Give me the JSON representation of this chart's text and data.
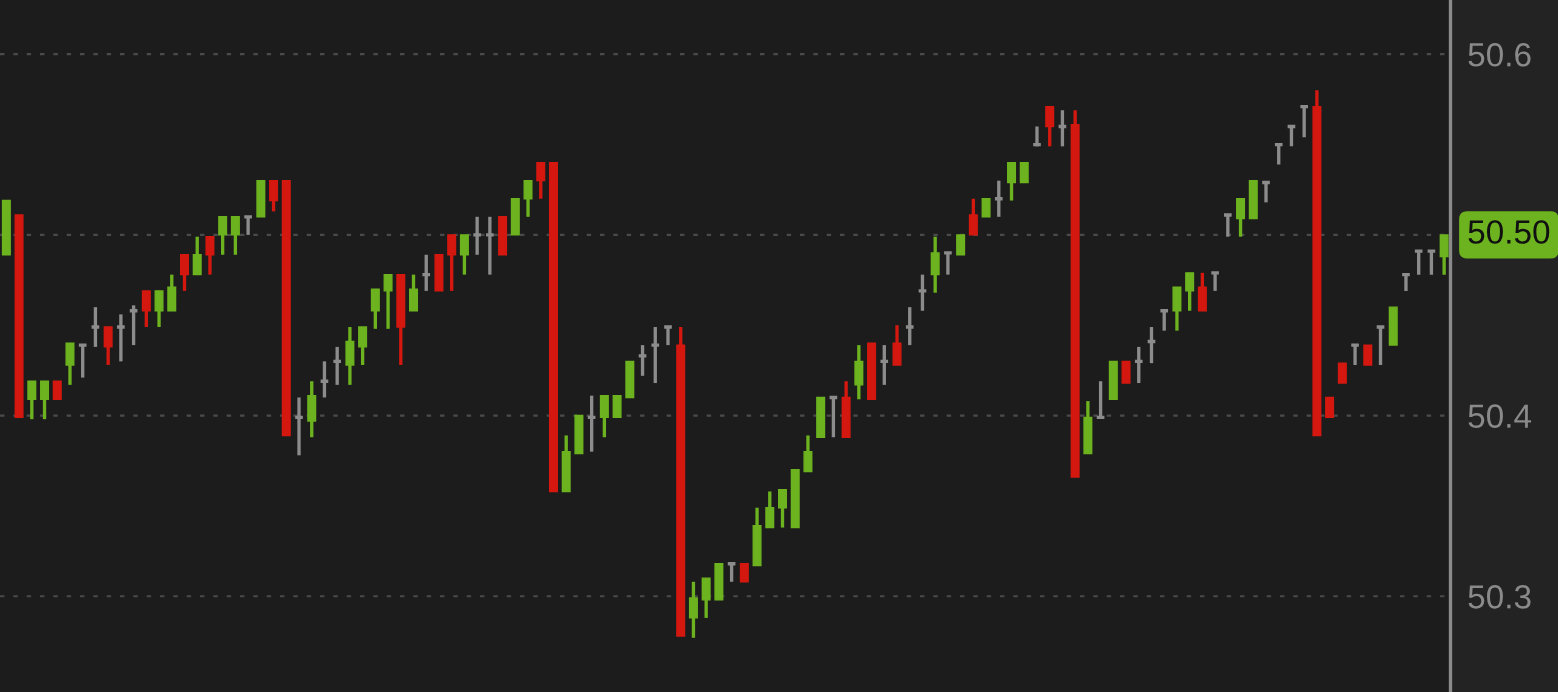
{
  "chart_data": {
    "type": "candlestick",
    "categories": [
      null,
      null,
      null,
      null,
      null,
      null,
      null,
      null,
      null,
      null,
      null,
      null,
      null,
      null,
      null,
      null,
      null,
      null,
      null,
      null,
      null,
      null,
      null,
      null,
      null,
      null,
      null,
      null,
      null,
      null,
      null,
      null,
      null,
      null,
      null,
      null,
      null,
      null,
      null,
      null,
      null,
      null,
      null,
      null,
      null,
      null,
      null,
      null,
      null,
      null,
      null,
      null,
      null,
      null,
      null,
      null,
      null,
      null,
      null,
      null,
      null,
      null,
      null,
      null,
      null,
      null,
      null,
      null,
      null,
      null,
      null,
      null,
      null,
      null,
      null,
      null,
      null,
      null,
      null,
      null,
      null,
      null,
      null,
      null,
      null,
      null,
      null,
      null,
      null,
      null,
      null,
      null,
      null,
      null,
      null,
      null,
      null,
      null,
      null,
      null,
      null,
      null,
      null,
      null,
      null,
      null,
      null,
      null,
      null,
      null,
      null,
      null,
      null,
      null
    ],
    "ohlc": [
      [
        50.489,
        50.519,
        50.489,
        50.519
      ],
      [
        50.511,
        50.511,
        50.399,
        50.399
      ],
      [
        50.409,
        50.419,
        50.398,
        50.419
      ],
      [
        50.409,
        50.419,
        50.398,
        50.419
      ],
      [
        50.419,
        50.419,
        50.409,
        50.409
      ],
      [
        50.428,
        50.44,
        50.417,
        50.44
      ],
      [
        50.439,
        50.439,
        50.421,
        50.439
      ],
      [
        50.449,
        50.46,
        50.438,
        50.449
      ],
      [
        50.449,
        50.449,
        50.428,
        50.438
      ],
      [
        50.449,
        50.456,
        50.43,
        50.449
      ],
      [
        50.458,
        50.461,
        50.439,
        50.458
      ],
      [
        50.469,
        50.469,
        50.449,
        50.458
      ],
      [
        50.458,
        50.469,
        50.449,
        50.469
      ],
      [
        50.458,
        50.478,
        50.458,
        50.471
      ],
      [
        50.489,
        50.489,
        50.469,
        50.478
      ],
      [
        50.478,
        50.499,
        50.478,
        50.489
      ],
      [
        50.499,
        50.499,
        50.478,
        50.489
      ],
      [
        50.5,
        50.51,
        50.489,
        50.51
      ],
      [
        50.5,
        50.51,
        50.489,
        50.51
      ],
      [
        50.51,
        50.51,
        50.5,
        50.51
      ],
      [
        50.51,
        50.53,
        50.51,
        50.53
      ],
      [
        50.53,
        50.53,
        50.513,
        50.519
      ],
      [
        50.53,
        50.53,
        50.389,
        50.389
      ],
      [
        50.399,
        50.41,
        50.378,
        50.399
      ],
      [
        50.397,
        50.419,
        50.388,
        50.411
      ],
      [
        50.419,
        50.43,
        50.41,
        50.419
      ],
      [
        50.43,
        50.438,
        50.417,
        50.43
      ],
      [
        50.428,
        50.449,
        50.417,
        50.441
      ],
      [
        50.438,
        50.449,
        50.428,
        50.449
      ],
      [
        50.458,
        50.47,
        50.448,
        50.47
      ],
      [
        50.469,
        50.478,
        50.448,
        50.478
      ],
      [
        50.478,
        50.478,
        50.428,
        50.449
      ],
      [
        50.458,
        50.478,
        50.458,
        50.47
      ],
      [
        50.478,
        50.489,
        50.469,
        50.478
      ],
      [
        50.489,
        50.489,
        50.469,
        50.469
      ],
      [
        50.5,
        50.5,
        50.469,
        50.489
      ],
      [
        50.489,
        50.5,
        50.478,
        50.5
      ],
      [
        50.5,
        50.51,
        50.489,
        50.5
      ],
      [
        50.5,
        50.51,
        50.478,
        50.5
      ],
      [
        50.51,
        50.51,
        50.489,
        50.489
      ],
      [
        50.5,
        50.52,
        50.5,
        50.52
      ],
      [
        50.52,
        50.53,
        50.51,
        50.53
      ],
      [
        50.54,
        50.54,
        50.52,
        50.53
      ],
      [
        50.54,
        50.54,
        50.358,
        50.358
      ],
      [
        50.358,
        50.389,
        50.358,
        50.38
      ],
      [
        50.379,
        50.4,
        50.379,
        50.4
      ],
      [
        50.399,
        50.411,
        50.38,
        50.399
      ],
      [
        50.399,
        50.411,
        50.388,
        50.411
      ],
      [
        50.399,
        50.411,
        50.399,
        50.411
      ],
      [
        50.41,
        50.43,
        50.41,
        50.43
      ],
      [
        50.433,
        50.439,
        50.422,
        50.433
      ],
      [
        50.439,
        50.449,
        50.418,
        50.439
      ],
      [
        50.449,
        50.449,
        50.439,
        50.449
      ],
      [
        50.439,
        50.449,
        50.278,
        50.278
      ],
      [
        50.288,
        50.308,
        50.277,
        50.299
      ],
      [
        50.298,
        50.31,
        50.288,
        50.31
      ],
      [
        50.298,
        50.318,
        50.298,
        50.318
      ],
      [
        50.318,
        50.318,
        50.308,
        50.318
      ],
      [
        50.318,
        50.318,
        50.308,
        50.308
      ],
      [
        50.317,
        50.349,
        50.317,
        50.339
      ],
      [
        50.338,
        50.358,
        50.338,
        50.349
      ],
      [
        50.349,
        50.359,
        50.338,
        50.359
      ],
      [
        50.338,
        50.37,
        50.338,
        50.37
      ],
      [
        50.369,
        50.389,
        50.369,
        50.38
      ],
      [
        50.388,
        50.41,
        50.388,
        50.41
      ],
      [
        50.41,
        50.41,
        50.388,
        50.41
      ],
      [
        50.41,
        50.419,
        50.388,
        50.388
      ],
      [
        50.417,
        50.439,
        50.409,
        50.43
      ],
      [
        50.44,
        50.44,
        50.409,
        50.409
      ],
      [
        50.43,
        50.439,
        50.417,
        50.43
      ],
      [
        50.44,
        50.45,
        50.428,
        50.428
      ],
      [
        50.449,
        50.46,
        50.439,
        50.449
      ],
      [
        50.469,
        50.478,
        50.458,
        50.469
      ],
      [
        50.478,
        50.499,
        50.468,
        50.49
      ],
      [
        50.49,
        50.49,
        50.478,
        50.49
      ],
      [
        50.489,
        50.5,
        50.489,
        50.5
      ],
      [
        50.511,
        50.52,
        50.5,
        50.5
      ],
      [
        50.51,
        50.52,
        50.51,
        50.52
      ],
      [
        50.52,
        50.53,
        50.51,
        50.52
      ],
      [
        50.529,
        50.54,
        50.519,
        50.54
      ],
      [
        50.529,
        50.54,
        50.529,
        50.54
      ],
      [
        50.55,
        50.56,
        50.549,
        50.55
      ],
      [
        50.571,
        50.571,
        50.549,
        50.56
      ],
      [
        50.56,
        50.569,
        50.549,
        50.56
      ],
      [
        50.561,
        50.569,
        50.366,
        50.366
      ],
      [
        50.379,
        50.408,
        50.379,
        50.399
      ],
      [
        50.399,
        50.419,
        50.399,
        50.399
      ],
      [
        50.409,
        50.43,
        50.409,
        50.43
      ],
      [
        50.43,
        50.43,
        50.418,
        50.418
      ],
      [
        50.43,
        50.438,
        50.418,
        50.43
      ],
      [
        50.441,
        50.449,
        50.429,
        50.441
      ],
      [
        50.458,
        50.458,
        50.447,
        50.458
      ],
      [
        50.458,
        50.471,
        50.447,
        50.471
      ],
      [
        50.469,
        50.479,
        50.458,
        50.479
      ],
      [
        50.471,
        50.479,
        50.458,
        50.458
      ],
      [
        50.479,
        50.479,
        50.469,
        50.479
      ],
      [
        50.511,
        50.511,
        50.499,
        50.511
      ],
      [
        50.509,
        50.52,
        50.499,
        50.52
      ],
      [
        50.509,
        50.53,
        50.509,
        50.53
      ],
      [
        50.529,
        50.529,
        50.518,
        50.529
      ],
      [
        50.55,
        50.55,
        50.539,
        50.55
      ],
      [
        50.56,
        50.56,
        50.549,
        50.56
      ],
      [
        50.571,
        50.571,
        50.554,
        50.571
      ],
      [
        50.571,
        50.58,
        50.389,
        50.389
      ],
      [
        50.41,
        50.41,
        50.399,
        50.399
      ],
      [
        50.429,
        50.429,
        50.418,
        50.418
      ],
      [
        50.439,
        50.439,
        50.428,
        50.439
      ],
      [
        50.439,
        50.439,
        50.428,
        50.428
      ],
      [
        50.449,
        50.449,
        50.428,
        50.449
      ],
      [
        50.439,
        50.46,
        50.439,
        50.46
      ],
      [
        50.478,
        50.478,
        50.469,
        50.478
      ],
      [
        50.491,
        50.491,
        50.478,
        50.491
      ],
      [
        50.491,
        50.491,
        50.478,
        50.491
      ],
      [
        50.488,
        50.5,
        50.478,
        50.5
      ]
    ],
    "colors": [
      "#6cb31f",
      "#d4180f",
      "#6cb31f",
      "#6cb31f",
      "#d4180f",
      "#6cb31f",
      "#8c8c8c",
      "#8c8c8c",
      "#d4180f",
      "#8c8c8c",
      "#8c8c8c",
      "#d4180f",
      "#6cb31f",
      "#6cb31f",
      "#d4180f",
      "#6cb31f",
      "#d4180f",
      "#6cb31f",
      "#6cb31f",
      "#8c8c8c",
      "#6cb31f",
      "#d4180f",
      "#d4180f",
      "#8c8c8c",
      "#6cb31f",
      "#8c8c8c",
      "#8c8c8c",
      "#6cb31f",
      "#6cb31f",
      "#6cb31f",
      "#6cb31f",
      "#d4180f",
      "#6cb31f",
      "#8c8c8c",
      "#d4180f",
      "#d4180f",
      "#6cb31f",
      "#8c8c8c",
      "#8c8c8c",
      "#d4180f",
      "#6cb31f",
      "#6cb31f",
      "#d4180f",
      "#d4180f",
      "#6cb31f",
      "#6cb31f",
      "#8c8c8c",
      "#6cb31f",
      "#6cb31f",
      "#6cb31f",
      "#8c8c8c",
      "#8c8c8c",
      "#8c8c8c",
      "#d4180f",
      "#6cb31f",
      "#6cb31f",
      "#6cb31f",
      "#8c8c8c",
      "#d4180f",
      "#6cb31f",
      "#6cb31f",
      "#6cb31f",
      "#6cb31f",
      "#6cb31f",
      "#6cb31f",
      "#8c8c8c",
      "#d4180f",
      "#6cb31f",
      "#d4180f",
      "#8c8c8c",
      "#d4180f",
      "#8c8c8c",
      "#8c8c8c",
      "#6cb31f",
      "#8c8c8c",
      "#6cb31f",
      "#d4180f",
      "#6cb31f",
      "#8c8c8c",
      "#6cb31f",
      "#6cb31f",
      "#8c8c8c",
      "#d4180f",
      "#8c8c8c",
      "#d4180f",
      "#6cb31f",
      "#8c8c8c",
      "#6cb31f",
      "#d4180f",
      "#8c8c8c",
      "#8c8c8c",
      "#8c8c8c",
      "#6cb31f",
      "#6cb31f",
      "#d4180f",
      "#8c8c8c",
      "#8c8c8c",
      "#6cb31f",
      "#6cb31f",
      "#8c8c8c",
      "#8c8c8c",
      "#8c8c8c",
      "#8c8c8c",
      "#d4180f",
      "#d4180f",
      "#d4180f",
      "#8c8c8c",
      "#d4180f",
      "#8c8c8c",
      "#6cb31f",
      "#8c8c8c",
      "#8c8c8c",
      "#8c8c8c",
      "#6cb31f"
    ],
    "ylim": [
      50.247,
      50.63
    ],
    "yticks": [
      50.3,
      50.4,
      {
        "value": 50.5,
        "label": null
      },
      50.6
    ],
    "grid": "y",
    "annotations": [
      "50.50"
    ]
  }
}
